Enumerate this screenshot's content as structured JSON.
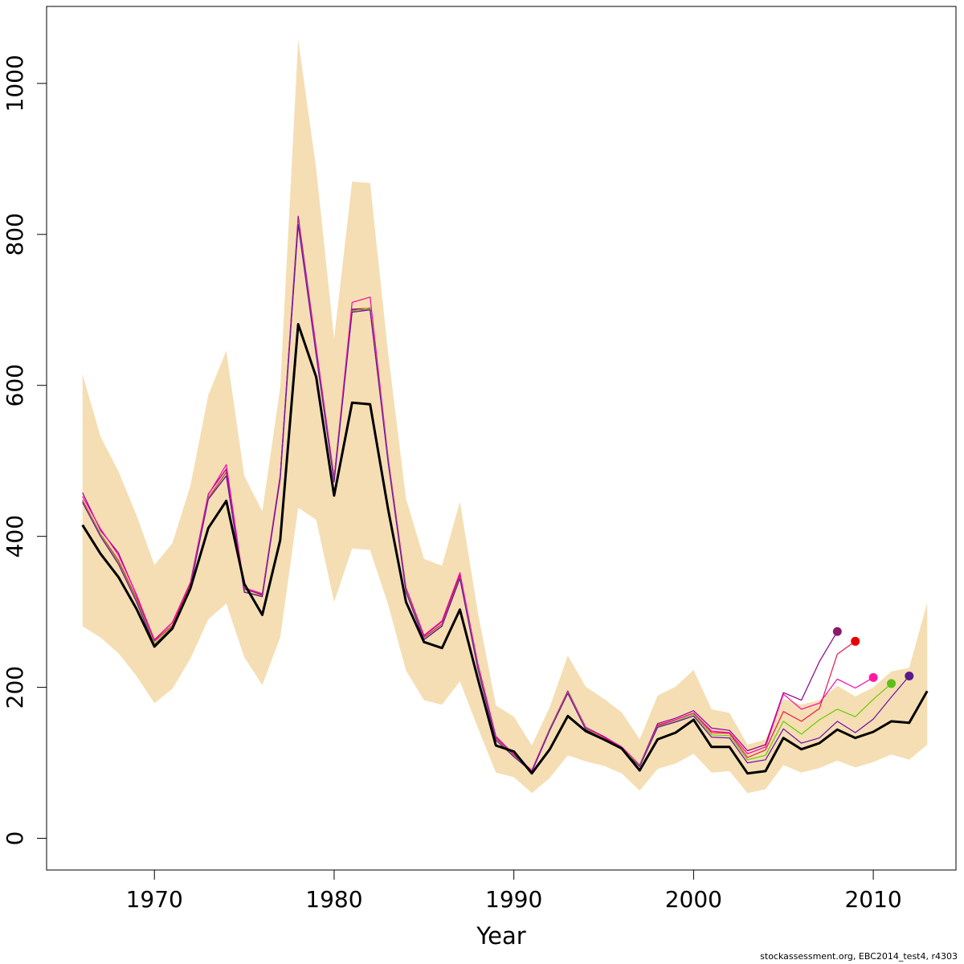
{
  "chart_data": {
    "type": "line",
    "title": "",
    "xlabel": "Year",
    "ylabel": "",
    "xlim": [
      1964,
      2014.6
    ],
    "ylim": [
      -42,
      1102
    ],
    "x_ticks": [
      1970,
      1980,
      1990,
      2000,
      2010
    ],
    "x_tick_labels": [
      "1970",
      "1980",
      "1990",
      "2000",
      "2010"
    ],
    "y_ticks": [
      0,
      200,
      400,
      600,
      800,
      1000
    ],
    "y_tick_labels": [
      "0",
      "200",
      "400",
      "600",
      "800",
      "1000"
    ],
    "grid": false,
    "legend": "none",
    "band": {
      "color": "#f5deb3",
      "x": [
        1966,
        1967,
        1968,
        1969,
        1970,
        1971,
        1972,
        1973,
        1974,
        1975,
        1976,
        1977,
        1978,
        1979,
        1980,
        1981,
        1982,
        1983,
        1984,
        1985,
        1986,
        1987,
        1988,
        1989,
        1990,
        1991,
        1992,
        1993,
        1994,
        1995,
        1996,
        1997,
        1998,
        1999,
        2000,
        2001,
        2002,
        2003,
        2004,
        2005,
        2006,
        2007,
        2008,
        2009,
        2010,
        2011,
        2012,
        2013
      ],
      "lower": [
        281,
        266,
        245,
        215,
        179,
        198,
        238,
        290,
        311,
        240,
        203,
        266,
        438,
        422,
        313,
        384,
        382,
        310,
        222,
        183,
        177,
        208,
        146,
        87,
        81,
        60,
        80,
        110,
        102,
        96,
        86,
        63,
        92,
        99,
        112,
        87,
        89,
        60,
        65,
        97,
        87,
        93,
        103,
        94,
        101,
        111,
        104,
        124
      ],
      "upper": [
        615,
        532,
        486,
        428,
        362,
        391,
        467,
        587,
        646,
        480,
        433,
        597,
        1058,
        887,
        662,
        870,
        868,
        643,
        450,
        370,
        361,
        446,
        299,
        176,
        161,
        123,
        174,
        242,
        201,
        185,
        167,
        131,
        189,
        201,
        223,
        171,
        166,
        124,
        131,
        185,
        177,
        183,
        202,
        188,
        200,
        221,
        226,
        312
      ]
    },
    "series": [
      {
        "color": "#000000",
        "width": 3,
        "x": [
          1966,
          1967,
          1968,
          1969,
          1970,
          1971,
          1972,
          1973,
          1974,
          1975,
          1976,
          1977,
          1978,
          1979,
          1980,
          1981,
          1982,
          1983,
          1984,
          1985,
          1986,
          1987,
          1988,
          1989,
          1990,
          1991,
          1992,
          1993,
          1994,
          1995,
          1996,
          1997,
          1998,
          1999,
          2000,
          2001,
          2002,
          2003,
          2004,
          2005,
          2006,
          2007,
          2008,
          2009,
          2010,
          2011,
          2012,
          2013
        ],
        "values": [
          415,
          377,
          346,
          304,
          254,
          278,
          331,
          411,
          447,
          337,
          296,
          395,
          681,
          611,
          454,
          577,
          575,
          436,
          313,
          260,
          252,
          303,
          211,
          123,
          115,
          86,
          118,
          162,
          142,
          131,
          119,
          90,
          131,
          140,
          157,
          121,
          121,
          86,
          89,
          133,
          118,
          126,
          144,
          133,
          141,
          155,
          153,
          195
        ]
      },
      {
        "color": "#e6194b",
        "width": 1.2,
        "x": [
          1966,
          1967,
          1968,
          1969,
          1970,
          1971,
          1972,
          1973,
          1974,
          1975,
          1976,
          1977,
          1978,
          1979,
          1980,
          1981,
          1982,
          1983,
          1984,
          1985,
          1986,
          1987,
          1988,
          1989,
          1990,
          1991,
          1992,
          1993,
          1994,
          1995,
          1996,
          1997,
          1998,
          1999,
          2000,
          2001,
          2002,
          2003,
          2004,
          2005,
          2006,
          2007,
          2008,
          2009
        ],
        "values": [
          448,
          403,
          368,
          318,
          261,
          282,
          337,
          451,
          485,
          326,
          322,
          479,
          817,
          645,
          476,
          700,
          700,
          501,
          329,
          266,
          284,
          347,
          228,
          133,
          110,
          89,
          145,
          195,
          146,
          134,
          120,
          97,
          150,
          157,
          166,
          140,
          139,
          107,
          117,
          168,
          155,
          172,
          244,
          261
        ]
      },
      {
        "color": "#8b008b",
        "width": 1.2,
        "x": [
          1966,
          1967,
          1968,
          1969,
          1970,
          1971,
          1972,
          1973,
          1974,
          1975,
          1976,
          1977,
          1978,
          1979,
          1980,
          1981,
          1982,
          1983,
          1984,
          1985,
          1986,
          1987,
          1988,
          1989,
          1990,
          1991,
          1992,
          1993,
          1994,
          1995,
          1996,
          1997,
          1998,
          1999,
          2000,
          2001,
          2002,
          2003,
          2004,
          2005,
          2006,
          2007,
          2008
        ],
        "values": [
          458,
          408,
          378,
          322,
          263,
          286,
          339,
          456,
          489,
          330,
          323,
          480,
          824,
          650,
          478,
          701,
          702,
          504,
          331,
          268,
          287,
          350,
          231,
          135,
          111,
          90,
          145,
          195,
          147,
          135,
          121,
          97,
          152,
          159,
          169,
          146,
          143,
          116,
          124,
          193,
          183,
          234,
          274
        ]
      },
      {
        "color": "#ff00aa",
        "width": 1.2,
        "x": [
          1966,
          1967,
          1968,
          1969,
          1970,
          1971,
          1972,
          1973,
          1974,
          1975,
          1976,
          1977,
          1978,
          1979,
          1980,
          1981,
          1982,
          1983,
          1984,
          1985,
          1986,
          1987,
          1988,
          1989,
          1990,
          1991,
          1992,
          1993,
          1994,
          1995,
          1996,
          1997,
          1998,
          1999,
          2000,
          2001,
          2002,
          2003,
          2004,
          2005,
          2006,
          2007,
          2008,
          2009,
          2010
        ],
        "values": [
          453,
          410,
          375,
          323,
          262,
          286,
          338,
          455,
          495,
          332,
          324,
          481,
          820,
          648,
          477,
          710,
          717,
          504,
          332,
          269,
          288,
          352,
          230,
          134,
          111,
          90,
          145,
          194,
          147,
          134,
          121,
          97,
          149,
          157,
          166,
          142,
          140,
          112,
          121,
          191,
          171,
          179,
          211,
          199,
          213
        ]
      },
      {
        "color": "#66cc00",
        "width": 1.2,
        "x": [
          1966,
          1967,
          1968,
          1969,
          1970,
          1971,
          1972,
          1973,
          1974,
          1975,
          1976,
          1977,
          1978,
          1979,
          1980,
          1981,
          1982,
          1983,
          1984,
          1985,
          1986,
          1987,
          1988,
          1989,
          1990,
          1991,
          1992,
          1993,
          1994,
          1995,
          1996,
          1997,
          1998,
          1999,
          2000,
          2001,
          2002,
          2003,
          2004,
          2005,
          2006,
          2007,
          2008,
          2009,
          2010,
          2011
        ],
        "values": [
          446,
          402,
          365,
          315,
          258,
          280,
          334,
          450,
          481,
          327,
          321,
          477,
          815,
          641,
          474,
          698,
          703,
          500,
          328,
          264,
          282,
          345,
          226,
          131,
          109,
          88,
          144,
          193,
          145,
          132,
          119,
          96,
          148,
          155,
          164,
          137,
          136,
          104,
          110,
          155,
          138,
          157,
          171,
          161,
          184,
          205
        ]
      },
      {
        "color": "#6a0dad",
        "width": 1.2,
        "x": [
          1966,
          1967,
          1968,
          1969,
          1970,
          1971,
          1972,
          1973,
          1974,
          1975,
          1976,
          1977,
          1978,
          1979,
          1980,
          1981,
          1982,
          1983,
          1984,
          1985,
          1986,
          1987,
          1988,
          1989,
          1990,
          1991,
          1992,
          1993,
          1994,
          1995,
          1996,
          1997,
          1998,
          1999,
          2000,
          2001,
          2002,
          2003,
          2004,
          2005,
          2006,
          2007,
          2008,
          2009,
          2010,
          2011,
          2012
        ],
        "values": [
          445,
          400,
          363,
          313,
          256,
          279,
          333,
          449,
          480,
          326,
          320,
          476,
          813,
          640,
          472,
          697,
          700,
          498,
          326,
          263,
          281,
          344,
          224,
          130,
          108,
          88,
          143,
          192,
          144,
          131,
          118,
          95,
          147,
          154,
          162,
          134,
          133,
          100,
          104,
          145,
          126,
          133,
          155,
          140,
          158,
          187,
          215
        ]
      }
    ],
    "endpoints": [
      {
        "x": 2008,
        "y": 274,
        "color": "#8b1a6b"
      },
      {
        "x": 2009,
        "y": 261,
        "color": "#e60000"
      },
      {
        "x": 2010,
        "y": 213,
        "color": "#ff1aa3"
      },
      {
        "x": 2011,
        "y": 205,
        "color": "#5cbf1a"
      },
      {
        "x": 2012,
        "y": 215,
        "color": "#5a1a8b"
      }
    ]
  },
  "footer": "stockassessment.org, EBC2014_test4, r4303"
}
